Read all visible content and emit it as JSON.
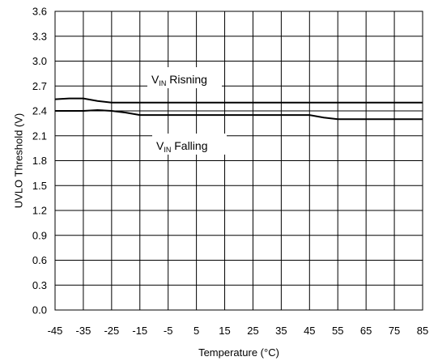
{
  "chart_data": {
    "type": "line",
    "xlabel": "Temperature (°C)",
    "ylabel": "UVLO Threshold  (V)",
    "xlim": [
      -45,
      85
    ],
    "ylim": [
      0,
      3.6
    ],
    "x_ticks": [
      "-45",
      "-35",
      "-25",
      "-15",
      "-5",
      "5",
      "15",
      "25",
      "35",
      "45",
      "55",
      "65",
      "75",
      "85"
    ],
    "y_ticks": [
      "0.0",
      "0.3",
      "0.6",
      "0.9",
      "1.2",
      "1.5",
      "1.8",
      "2.1",
      "2.4",
      "2.7",
      "3.0",
      "3.3",
      "3.6"
    ],
    "grid": true,
    "series": [
      {
        "name": "VIN Risning",
        "x": [
          -45,
          -40,
          -35,
          -30,
          -25,
          -20,
          -15,
          -5,
          5,
          15,
          25,
          35,
          45,
          55,
          65,
          75,
          85
        ],
        "y": [
          2.54,
          2.55,
          2.55,
          2.52,
          2.5,
          2.5,
          2.5,
          2.5,
          2.5,
          2.5,
          2.5,
          2.5,
          2.5,
          2.5,
          2.5,
          2.5,
          2.5
        ]
      },
      {
        "name": "VIN Falling",
        "x": [
          -45,
          -35,
          -30,
          -25,
          -20,
          -15,
          -5,
          5,
          15,
          25,
          35,
          45,
          50,
          55,
          65,
          75,
          85
        ],
        "y": [
          2.4,
          2.4,
          2.41,
          2.4,
          2.38,
          2.35,
          2.35,
          2.35,
          2.35,
          2.35,
          2.35,
          2.35,
          2.32,
          2.3,
          2.3,
          2.3,
          2.3
        ]
      }
    ],
    "annotations": [
      {
        "main": "V",
        "sub": "IN",
        "text": " Risning"
      },
      {
        "main": "V",
        "sub": "IN",
        "text": " Falling"
      }
    ]
  }
}
